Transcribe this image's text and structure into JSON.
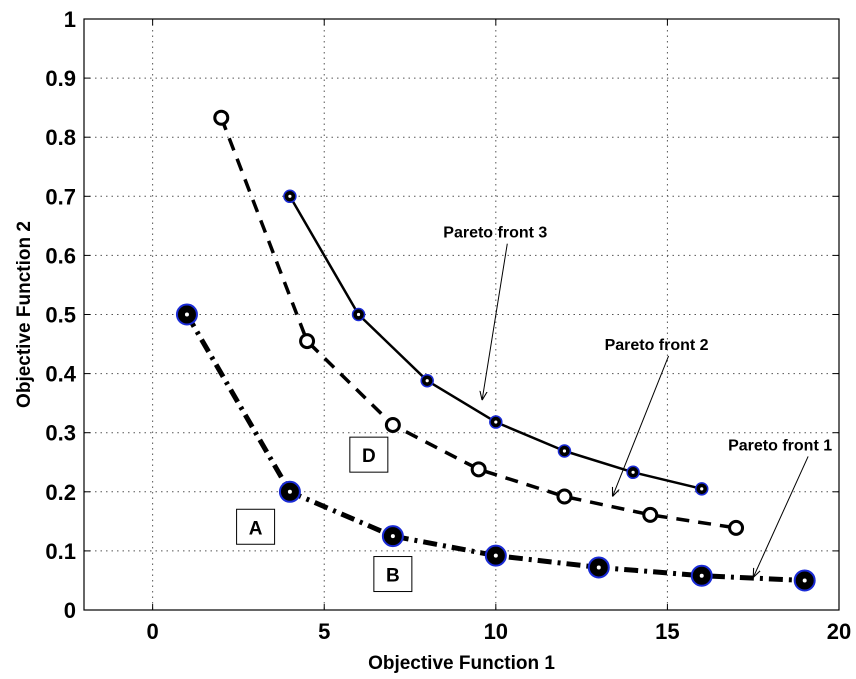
{
  "chart_data": {
    "type": "line",
    "title": "",
    "xlabel": "Objective Function 1",
    "ylabel": "Objective Function 2",
    "xlim": [
      -2,
      20
    ],
    "ylim": [
      0,
      1
    ],
    "xticks": [
      0,
      5,
      10,
      15,
      20
    ],
    "yticks": [
      0,
      0.1,
      0.2,
      0.3,
      0.4,
      0.5,
      0.6,
      0.7,
      0.8,
      0.9,
      1
    ],
    "grid": true,
    "series": [
      {
        "key": "front1",
        "style": "dash-dot",
        "marker": "filled-circle-large",
        "points": [
          [
            1,
            0.5
          ],
          [
            4,
            0.2
          ],
          [
            7,
            0.125
          ],
          [
            10,
            0.092
          ],
          [
            13,
            0.072
          ],
          [
            16,
            0.058
          ],
          [
            19,
            0.05
          ]
        ]
      },
      {
        "key": "front2",
        "style": "dashed",
        "marker": "open-circle",
        "points": [
          [
            2,
            0.833
          ],
          [
            4.5,
            0.455
          ],
          [
            7,
            0.313
          ],
          [
            9.5,
            0.238
          ],
          [
            12,
            0.192
          ],
          [
            14.5,
            0.161
          ],
          [
            17,
            0.139
          ]
        ]
      },
      {
        "key": "front3",
        "style": "solid",
        "marker": "filled-circle-small",
        "points": [
          [
            4,
            0.7
          ],
          [
            6,
            0.5
          ],
          [
            8,
            0.388
          ],
          [
            10,
            0.318
          ],
          [
            12,
            0.269
          ],
          [
            14,
            0.233
          ],
          [
            16,
            0.205
          ]
        ]
      }
    ],
    "annotations": [
      {
        "text": "Pareto front 3",
        "text_at": [
          11.5,
          0.63
        ],
        "arrow_to": [
          9.6,
          0.355
        ]
      },
      {
        "text": "Pareto front 2",
        "text_at": [
          16.2,
          0.44
        ],
        "arrow_to": [
          13.4,
          0.192
        ]
      },
      {
        "text": "Pareto front 1",
        "text_at": [
          19.8,
          0.27
        ],
        "arrow_to": [
          17.5,
          0.055
        ]
      }
    ],
    "point_labels": [
      {
        "text": "A",
        "at": [
          3,
          0.14
        ]
      },
      {
        "text": "B",
        "at": [
          7,
          0.06
        ]
      },
      {
        "text": "D",
        "at": [
          6.3,
          0.262
        ]
      }
    ]
  },
  "colors": {
    "line": "#000000",
    "marker_edge": "#1a2bd6",
    "marker_fill": "#000000",
    "grid": "#555555",
    "background": "#ffffff"
  }
}
